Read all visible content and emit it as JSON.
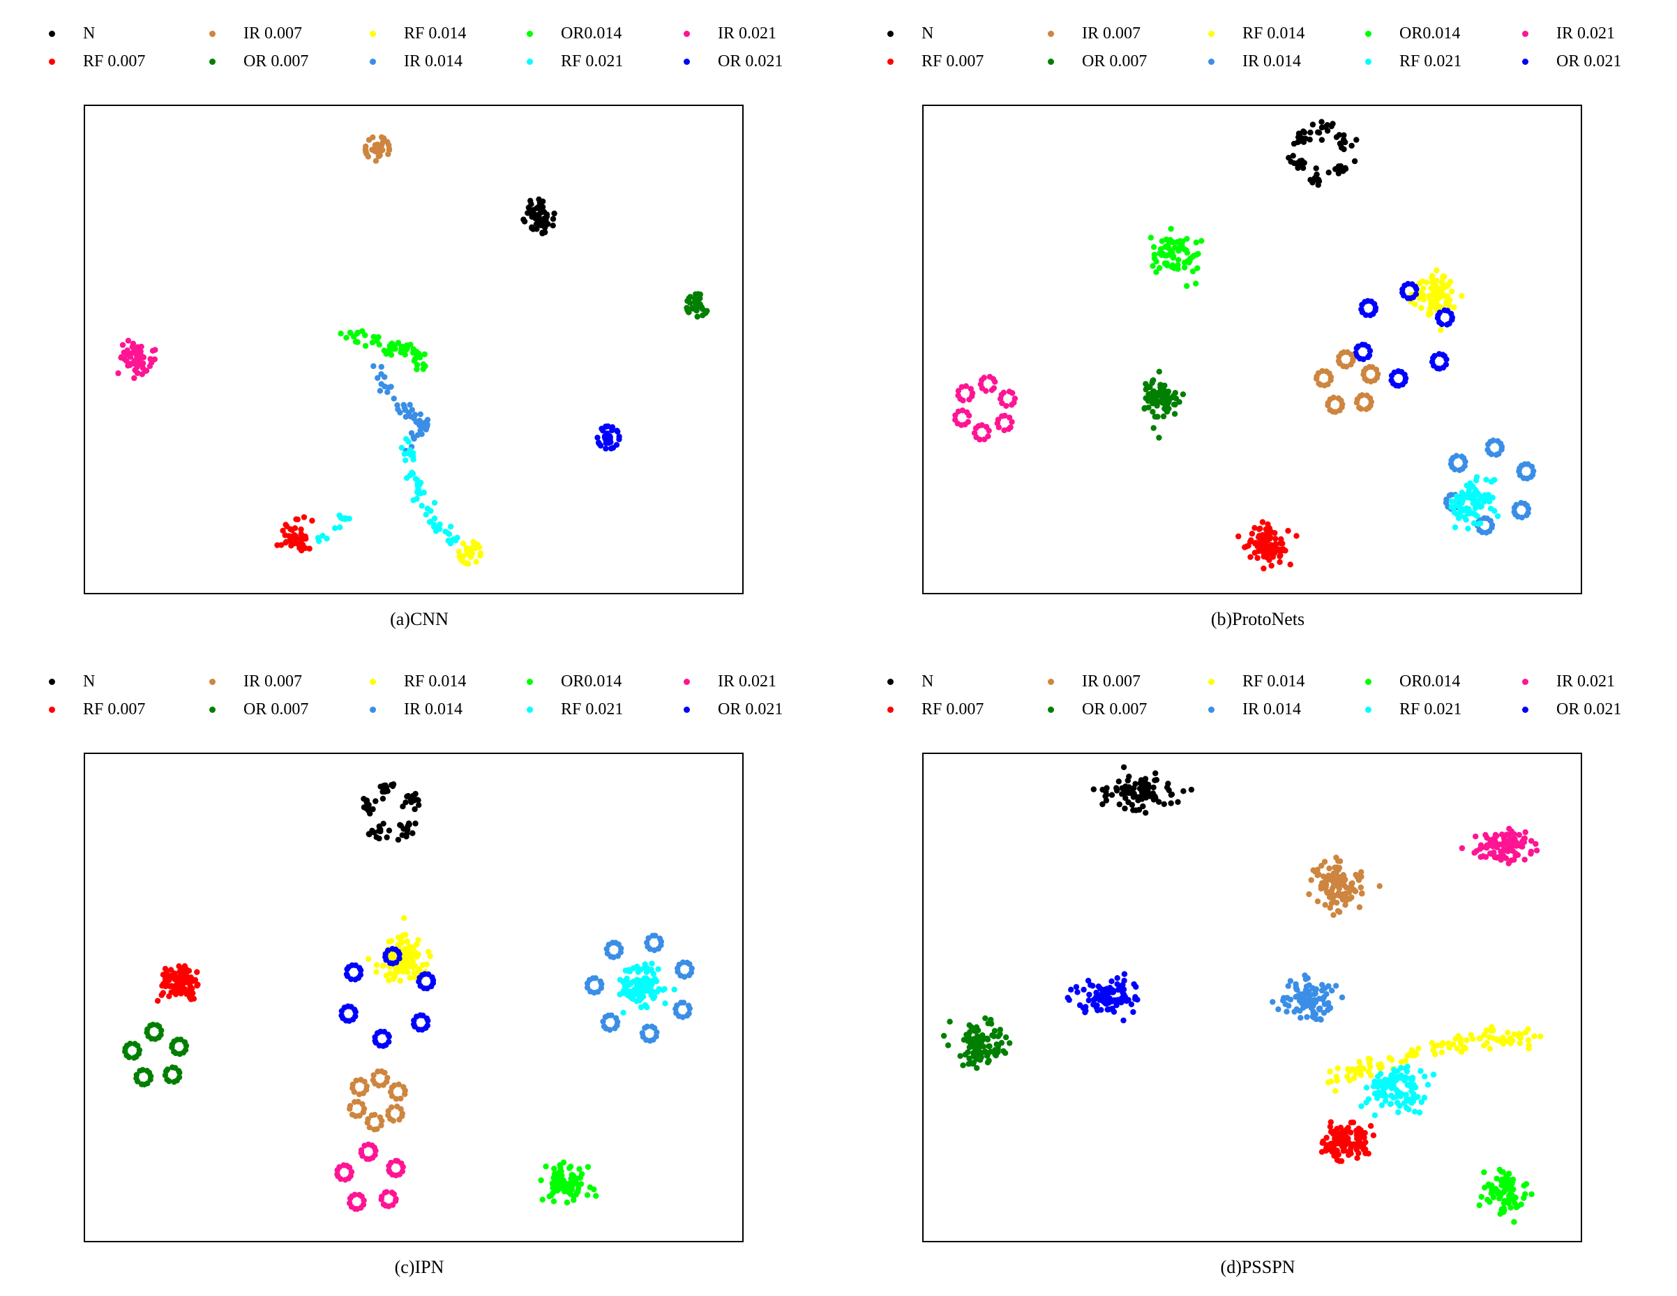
{
  "legend": {
    "entries": [
      {
        "label": "N",
        "color": "#000000"
      },
      {
        "label": "RF 0.007",
        "color": "#ff0000"
      },
      {
        "label": "IR 0.007",
        "color": "#cd853f"
      },
      {
        "label": "OR 0.007",
        "color": "#007f00"
      },
      {
        "label": "RF 0.014",
        "color": "#ffff00"
      },
      {
        "label": "IR 0.014",
        "color": "#3a8ee6"
      },
      {
        "label": "OR0.014",
        "color": "#00ff00"
      },
      {
        "label": "RF 0.021",
        "color": "#00ffff"
      },
      {
        "label": "IR 0.021",
        "color": "#ff1493"
      },
      {
        "label": "OR 0.021",
        "color": "#0000ff"
      }
    ]
  },
  "chart_data": [
    {
      "type": "scatter",
      "title": "(a)CNN",
      "xlim": [
        0,
        100
      ],
      "ylim": [
        0,
        100
      ],
      "clusters": [
        {
          "label": "IR 0.007",
          "cx": 44.5,
          "cy": 91,
          "spread": 2.4,
          "n": 40,
          "shape": "dense-ring"
        },
        {
          "label": "N",
          "cx": 69,
          "cy": 77,
          "spread": 2.5,
          "n": 55,
          "shape": "blob"
        },
        {
          "label": "OR 0.007",
          "cx": 93,
          "cy": 59,
          "spread": 2.2,
          "n": 40,
          "shape": "dense-ring"
        },
        {
          "label": "IR 0.021",
          "cx": 8,
          "cy": 48,
          "spread": 2.8,
          "n": 55,
          "shape": "blob"
        },
        {
          "label": "OR 0.021",
          "cx": 79.5,
          "cy": 32,
          "spread": 2.2,
          "n": 40,
          "shape": "dense-ring"
        },
        {
          "label": "RF 0.014",
          "cx": 58.5,
          "cy": 8.5,
          "spread": 2.2,
          "n": 40,
          "shape": "dense-ring"
        },
        {
          "label": "RF 0.007",
          "cx": 32,
          "cy": 12,
          "spread": 2.5,
          "n": 45,
          "shape": "blob"
        },
        {
          "label": "OR0.014",
          "path": [
            [
              39,
              53.5
            ],
            [
              44,
              51.5
            ],
            [
              47,
              50
            ],
            [
              50,
              49.5
            ],
            [
              52,
              46
            ]
          ],
          "n": 60
        },
        {
          "label": "IR 0.014",
          "path": [
            [
              44.5,
              46
            ],
            [
              45,
              42
            ],
            [
              48,
              38
            ],
            [
              52,
              35
            ],
            [
              49.5,
              30
            ]
          ],
          "n": 50
        },
        {
          "label": "RF 0.021",
          "path": [
            [
              49,
              31
            ],
            [
              49.5,
              25
            ],
            [
              51,
              20
            ],
            [
              53,
              15
            ],
            [
              56.5,
              11
            ]
          ],
          "n": 55
        },
        {
          "label": "RF 0.021",
          "path": [
            [
              35,
              10
            ],
            [
              37.5,
              14
            ],
            [
              40,
              16
            ]
          ],
          "n": 12
        }
      ]
    },
    {
      "type": "scatter",
      "title": "(b)ProtoNets",
      "xlim": [
        0,
        100
      ],
      "ylim": [
        0,
        100
      ],
      "clusters": [
        {
          "label": "N",
          "cx": 60.5,
          "cy": 90,
          "spread": 5,
          "n": 70,
          "shape": "subclusters",
          "sub": 6
        },
        {
          "label": "OR0.014",
          "cx": 38.5,
          "cy": 69.5,
          "spread": 3.6,
          "n": 70,
          "shape": "blob"
        },
        {
          "label": "RF 0.014",
          "cx": 78,
          "cy": 61,
          "spread": 3.8,
          "n": 90,
          "shape": "blob"
        },
        {
          "label": "OR 0.021",
          "cx": 73,
          "cy": 53,
          "spread": 9,
          "n": 72,
          "shape": "rings",
          "sub": 6
        },
        {
          "label": "IR 0.007",
          "cx": 64.5,
          "cy": 43,
          "spread": 5,
          "n": 60,
          "shape": "rings",
          "sub": 5
        },
        {
          "label": "IR 0.021",
          "cx": 9.5,
          "cy": 38,
          "spread": 5,
          "n": 60,
          "shape": "rings",
          "sub": 6
        },
        {
          "label": "OR 0.007",
          "cx": 36,
          "cy": 40,
          "spread": 3.4,
          "n": 80,
          "shape": "blob"
        },
        {
          "label": "IR 0.014",
          "cx": 86,
          "cy": 22,
          "spread": 8,
          "n": 72,
          "shape": "rings",
          "sub": 6
        },
        {
          "label": "RF 0.021",
          "cx": 83.5,
          "cy": 19,
          "spread": 4,
          "n": 90,
          "shape": "blob"
        },
        {
          "label": "RF 0.007",
          "cx": 52.5,
          "cy": 10,
          "spread": 3.6,
          "n": 95,
          "shape": "blob"
        }
      ]
    },
    {
      "type": "scatter",
      "title": "(c)IPN",
      "xlim": [
        0,
        100
      ],
      "ylim": [
        0,
        100
      ],
      "clusters": [
        {
          "label": "N",
          "cx": 46.5,
          "cy": 88,
          "spread": 5,
          "n": 70,
          "shape": "subclusters",
          "sub": 5
        },
        {
          "label": "RF 0.007",
          "cx": 14.5,
          "cy": 53,
          "spread": 3.2,
          "n": 100,
          "shape": "blob"
        },
        {
          "label": "OR 0.007",
          "cx": 11,
          "cy": 38,
          "spread": 5,
          "n": 60,
          "shape": "rings",
          "sub": 5
        },
        {
          "label": "RF 0.014",
          "cx": 48.5,
          "cy": 58,
          "spread": 3.8,
          "n": 110,
          "shape": "blob"
        },
        {
          "label": "OR 0.021",
          "cx": 46,
          "cy": 50,
          "spread": 8.5,
          "n": 72,
          "shape": "rings",
          "sub": 6
        },
        {
          "label": "RF 0.021",
          "cx": 84.5,
          "cy": 52,
          "spread": 3.4,
          "n": 110,
          "shape": "blob"
        },
        {
          "label": "IR 0.014",
          "cx": 84.5,
          "cy": 52,
          "spread": 9.5,
          "n": 72,
          "shape": "rings",
          "sub": 7
        },
        {
          "label": "IR 0.007",
          "cx": 44.5,
          "cy": 29,
          "spread": 4.5,
          "n": 60,
          "shape": "rings",
          "sub": 6
        },
        {
          "label": "IR 0.021",
          "cx": 43.5,
          "cy": 13,
          "spread": 5.5,
          "n": 60,
          "shape": "rings",
          "sub": 5
        },
        {
          "label": "OR0.014",
          "cx": 73,
          "cy": 12.5,
          "spread": 3.4,
          "n": 80,
          "shape": "blob"
        }
      ]
    },
    {
      "type": "scatter",
      "title": "(d)PSSPN",
      "xlim": [
        0,
        100
      ],
      "ylim": [
        0,
        100
      ],
      "clusters": [
        {
          "label": "N",
          "cx": 33,
          "cy": 92,
          "spread": 4,
          "n": 90,
          "shape": "ellipse",
          "sx": 1.6,
          "sy": 0.7
        },
        {
          "label": "IR 0.021",
          "cx": 88,
          "cy": 81,
          "spread": 3.6,
          "n": 100,
          "shape": "ellipse",
          "sx": 1.3,
          "sy": 0.8
        },
        {
          "label": "IR 0.007",
          "cx": 63,
          "cy": 72.5,
          "spread": 3.8,
          "n": 110,
          "shape": "ellipse",
          "sx": 1.2,
          "sy": 1.0
        },
        {
          "label": "OR 0.021",
          "cx": 28,
          "cy": 50,
          "spread": 4,
          "n": 100,
          "shape": "ellipse",
          "sx": 1.4,
          "sy": 0.7
        },
        {
          "label": "IR 0.014",
          "cx": 58.5,
          "cy": 49.5,
          "spread": 3.8,
          "n": 100,
          "shape": "ellipse",
          "sx": 1.2,
          "sy": 0.9
        },
        {
          "label": "OR 0.007",
          "cx": 9,
          "cy": 40.5,
          "spread": 3.8,
          "n": 100,
          "shape": "ellipse",
          "sx": 1.1,
          "sy": 0.9
        },
        {
          "label": "RF 0.014",
          "path": [
            [
              62,
              33
            ],
            [
              70,
              37
            ],
            [
              78,
              40
            ],
            [
              86,
              41.5
            ],
            [
              93,
              42
            ]
          ],
          "n": 110
        },
        {
          "label": "RF 0.021",
          "cx": 71.5,
          "cy": 31,
          "spread": 4,
          "n": 110,
          "shape": "ellipse",
          "sx": 1.3,
          "sy": 0.9
        },
        {
          "label": "RF 0.007",
          "cx": 64,
          "cy": 21,
          "spread": 3.6,
          "n": 110,
          "shape": "ellipse",
          "sx": 1.2,
          "sy": 0.9
        },
        {
          "label": "OR0.014",
          "cx": 88.5,
          "cy": 10.5,
          "spread": 3.4,
          "n": 90,
          "shape": "ellipse",
          "sx": 1.0,
          "sy": 1.1
        }
      ]
    }
  ]
}
